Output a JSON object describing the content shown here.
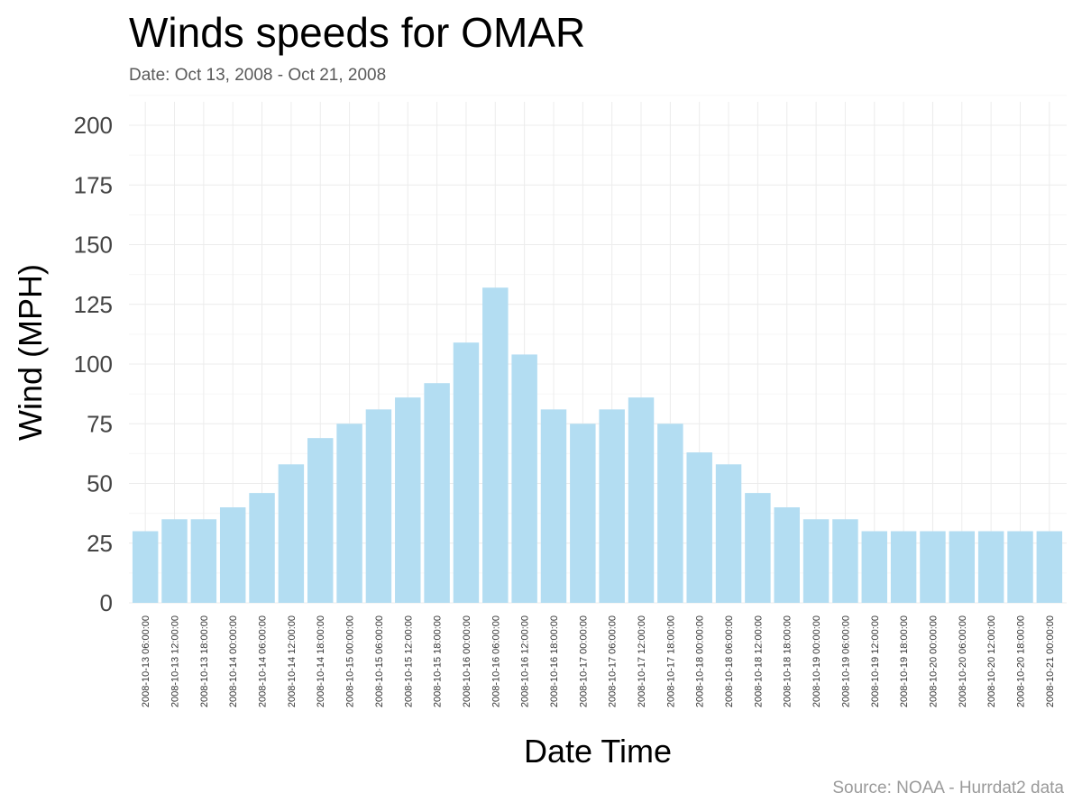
{
  "chart_data": {
    "type": "bar",
    "title": "Winds speeds for OMAR",
    "subtitle": "Date:  Oct 13, 2008 - Oct 21, 2008",
    "xlabel": "Date Time",
    "ylabel": "Wind (MPH)",
    "caption": "Source: NOAA - Hurrdat2 data",
    "ylim": [
      0,
      200
    ],
    "yticks": [
      0,
      25,
      50,
      75,
      100,
      125,
      150,
      175,
      200
    ],
    "grid": true,
    "bar_color": "#b3ddf2",
    "categories": [
      "2008-10-13 06:00:00",
      "2008-10-13 12:00:00",
      "2008-10-13 18:00:00",
      "2008-10-14 00:00:00",
      "2008-10-14 06:00:00",
      "2008-10-14 12:00:00",
      "2008-10-14 18:00:00",
      "2008-10-15 00:00:00",
      "2008-10-15 06:00:00",
      "2008-10-15 12:00:00",
      "2008-10-15 18:00:00",
      "2008-10-16 00:00:00",
      "2008-10-16 06:00:00",
      "2008-10-16 12:00:00",
      "2008-10-16 18:00:00",
      "2008-10-17 00:00:00",
      "2008-10-17 06:00:00",
      "2008-10-17 12:00:00",
      "2008-10-17 18:00:00",
      "2008-10-18 00:00:00",
      "2008-10-18 06:00:00",
      "2008-10-18 12:00:00",
      "2008-10-18 18:00:00",
      "2008-10-19 00:00:00",
      "2008-10-19 06:00:00",
      "2008-10-19 12:00:00",
      "2008-10-19 18:00:00",
      "2008-10-20 00:00:00",
      "2008-10-20 06:00:00",
      "2008-10-20 12:00:00",
      "2008-10-20 18:00:00",
      "2008-10-21 00:00:00"
    ],
    "values": [
      30,
      35,
      35,
      40,
      46,
      58,
      69,
      75,
      81,
      86,
      92,
      109,
      132,
      104,
      81,
      75,
      81,
      86,
      75,
      63,
      58,
      46,
      40,
      35,
      35,
      30,
      30,
      30,
      30,
      30,
      30,
      30
    ]
  }
}
